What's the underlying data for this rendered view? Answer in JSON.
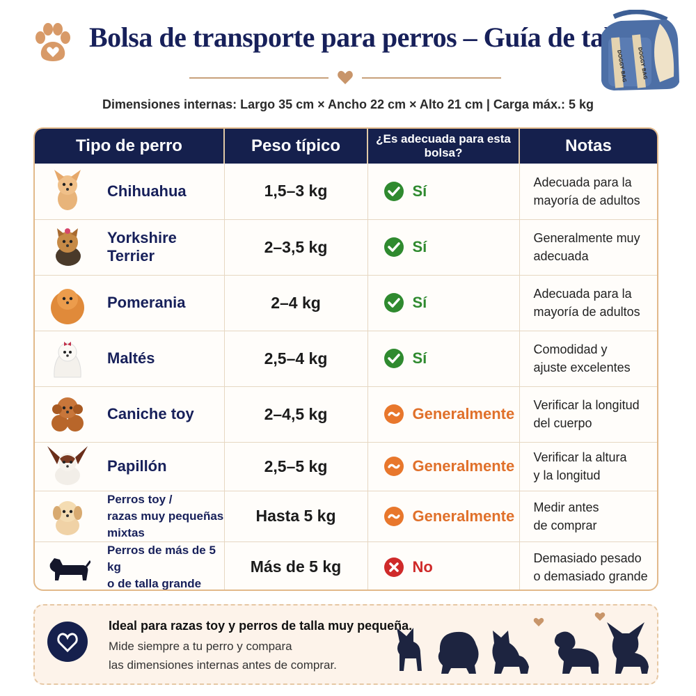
{
  "header": {
    "title": "Bolsa de transporte para perros – Guía de tallas",
    "bag_text_1": "DOGGY BAG",
    "bag_text_2": "DOGGY BAG",
    "dimensions": "Dimensiones internas: Largo 35 cm × Ancho 22 cm × Alto 21 cm | Carga máx.: 5 kg"
  },
  "table": {
    "headers": [
      "Tipo de perro",
      "Peso típico",
      "¿Es adecuada para esta bolsa?",
      "Notas"
    ],
    "rows": [
      {
        "breed": "Chihuahua",
        "breed2": "",
        "weight": "1,5–3 kg",
        "status": "yes",
        "label": "Sí",
        "note1": "Adecuada para la",
        "note2": "mayoría de adultos",
        "icon": "chihuahua-icon"
      },
      {
        "breed": "Yorkshire Terrier",
        "breed2": "",
        "weight": "2–3,5 kg",
        "status": "yes",
        "label": "Sí",
        "note1": "Generalmente muy",
        "note2": "adecuada",
        "icon": "yorkshire-icon"
      },
      {
        "breed": "Pomerania",
        "breed2": "",
        "weight": "2–4 kg",
        "status": "yes",
        "label": "Sí",
        "note1": "Adecuada para la",
        "note2": "mayoría de adultos",
        "icon": "pomeranian-icon"
      },
      {
        "breed": "Maltés",
        "breed2": "",
        "weight": "2,5–4 kg",
        "status": "yes",
        "label": "Sí",
        "note1": "Comodidad y",
        "note2": "ajuste excelentes",
        "icon": "maltese-icon"
      },
      {
        "breed": "Caniche toy",
        "breed2": "",
        "weight": "2–4,5 kg",
        "status": "maybe",
        "label": "Generalmente",
        "note1": "Verificar la longitud",
        "note2": "del cuerpo",
        "icon": "poodle-icon"
      },
      {
        "breed": "Papillón",
        "breed2": "",
        "weight": "2,5–5 kg",
        "status": "maybe",
        "label": "Generalmente",
        "note1": "Verificar la altura",
        "note2": "y la longitud",
        "icon": "papillon-icon"
      },
      {
        "breed": "Perros toy /",
        "breed2": "razas muy pequeñas mixtas",
        "weight": "Hasta 5 kg",
        "status": "maybe",
        "label": "Generalmente",
        "note1": "Medir antes",
        "note2": "de comprar",
        "icon": "puppy-icon"
      },
      {
        "breed": "Perros de más de 5 kg",
        "breed2": "o de talla grande",
        "weight": "Más de 5 kg",
        "status": "no",
        "label": "No",
        "note1": "Demasiado pesado",
        "note2": "o demasiado grande",
        "icon": "dachshund-icon"
      }
    ]
  },
  "banner": {
    "line1": "Ideal para razas toy y perros de talla muy pequeña.",
    "line2": "Mide siempre a tu perro y compara",
    "line3": "las dimensiones internas antes de comprar."
  },
  "colors": {
    "navy": "#15204d",
    "yes": "#2f8a2f",
    "maybe": "#e0702a",
    "no": "#cf2a2a",
    "accent": "#c8a07a"
  }
}
